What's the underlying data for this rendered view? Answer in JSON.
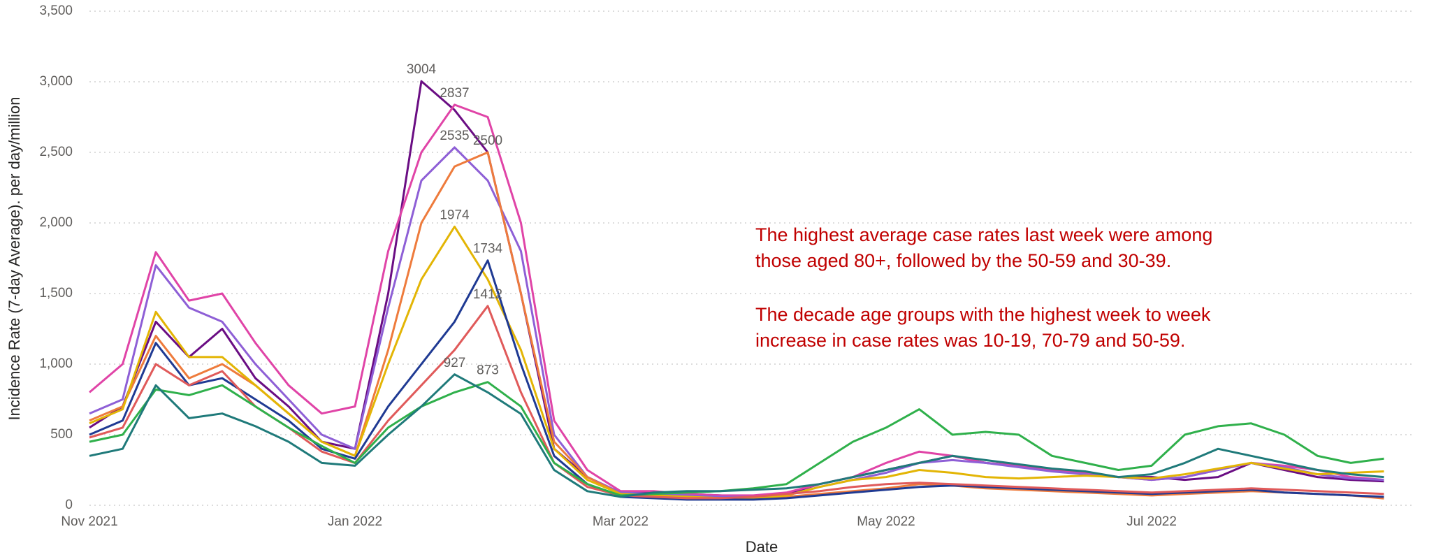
{
  "chart_data": {
    "type": "line",
    "xlabel": "Date",
    "ylabel": "Incidence Rate (7-day Average). per day/million",
    "annotations": [
      "The highest average case rates last week were among",
      "those aged 80+, followed by the 50-59 and 30-39.",
      "The decade age groups with the highest week to week",
      "increase in case rates was 10-19, 70-79 and 50-59."
    ],
    "categories": [
      "Nov 2021",
      null,
      null,
      null,
      null,
      null,
      null,
      null,
      "Jan 2022",
      null,
      null,
      null,
      null,
      null,
      null,
      null,
      "Mar 2022",
      null,
      null,
      null,
      null,
      null,
      null,
      null,
      "May 2022",
      null,
      null,
      null,
      null,
      null,
      null,
      null,
      "Jul 2022",
      null,
      null,
      null,
      null,
      null,
      null,
      null
    ],
    "ylim": [
      0,
      3500
    ],
    "yticks": [
      0,
      500,
      {
        "value": 1000,
        "label": "1,000"
      },
      {
        "value": 1500,
        "label": "1,500"
      },
      {
        "value": 2000,
        "label": "2,000"
      },
      {
        "value": 2500,
        "label": "2,500"
      },
      {
        "value": 3000,
        "label": "3,000"
      },
      {
        "value": 3500,
        "label": "3,500"
      }
    ],
    "grid": true,
    "series": [
      {
        "color": "#6a0d83",
        "values": [
          550,
          700,
          1300,
          1050,
          1250,
          900,
          700,
          450,
          400,
          1500,
          3004,
          2800,
          2500,
          1500,
          400,
          200,
          90,
          90,
          80,
          70,
          60,
          80,
          150,
          200,
          250,
          300,
          350,
          300,
          280,
          250,
          220,
          200,
          200,
          180,
          200,
          300,
          250,
          200,
          180,
          170
        ]
      },
      {
        "color": "#e044a7",
        "values": [
          800,
          1000,
          1793,
          1450,
          1500,
          1150,
          850,
          650,
          700,
          1800,
          2500,
          2837,
          2750,
          2000,
          600,
          250,
          100,
          100,
          80,
          70,
          70,
          90,
          150,
          200,
          300,
          380,
          350,
          300,
          280,
          250,
          230,
          200,
          180,
          200,
          250,
          300,
          280,
          250,
          200,
          180
        ]
      },
      {
        "color": "#8e5fd6",
        "values": [
          650,
          750,
          1700,
          1400,
          1300,
          1000,
          750,
          500,
          400,
          1400,
          2300,
          2535,
          2300,
          1800,
          500,
          200,
          90,
          80,
          70,
          60,
          60,
          70,
          130,
          180,
          230,
          300,
          320,
          300,
          270,
          240,
          220,
          200,
          180,
          200,
          250,
          300,
          270,
          220,
          190,
          180
        ]
      },
      {
        "color": "#ee7b3c",
        "values": [
          600,
          700,
          1200,
          900,
          1000,
          850,
          650,
          450,
          350,
          1100,
          2000,
          2400,
          2500,
          1500,
          450,
          200,
          80,
          70,
          60,
          50,
          50,
          60,
          80,
          100,
          120,
          150,
          140,
          120,
          110,
          100,
          90,
          80,
          70,
          80,
          90,
          100,
          90,
          80,
          70,
          48
        ]
      },
      {
        "color": "#e3b505",
        "values": [
          580,
          680,
          1370,
          1050,
          1050,
          850,
          650,
          450,
          350,
          1000,
          1600,
          1974,
          1600,
          1100,
          400,
          180,
          80,
          70,
          60,
          50,
          50,
          70,
          130,
          180,
          200,
          250,
          230,
          200,
          190,
          200,
          210,
          200,
          190,
          220,
          260,
          300,
          260,
          220,
          230,
          240
        ]
      },
      {
        "color": "#1f3a93",
        "values": [
          500,
          600,
          1150,
          850,
          900,
          750,
          600,
          400,
          330,
          700,
          1000,
          1300,
          1734,
          1000,
          350,
          150,
          60,
          50,
          40,
          40,
          40,
          50,
          70,
          90,
          110,
          130,
          140,
          130,
          120,
          110,
          100,
          90,
          80,
          90,
          100,
          110,
          90,
          80,
          70,
          60
        ]
      },
      {
        "color": "#e05a5a",
        "values": [
          480,
          550,
          1000,
          850,
          950,
          700,
          550,
          380,
          300,
          600,
          850,
          1100,
          1412,
          800,
          300,
          130,
          70,
          60,
          50,
          50,
          60,
          80,
          100,
          130,
          150,
          160,
          150,
          140,
          130,
          120,
          110,
          100,
          90,
          100,
          110,
          120,
          110,
          100,
          90,
          80
        ]
      },
      {
        "color": "#2fb04b",
        "values": [
          450,
          500,
          820,
          780,
          850,
          700,
          550,
          420,
          300,
          550,
          700,
          800,
          873,
          700,
          300,
          150,
          70,
          80,
          90,
          100,
          120,
          150,
          300,
          450,
          550,
          680,
          500,
          520,
          500,
          350,
          300,
          250,
          280,
          500,
          560,
          580,
          500,
          350,
          300,
          330
        ]
      },
      {
        "color": "#1f7a7a",
        "values": [
          350,
          400,
          850,
          617,
          650,
          560,
          450,
          300,
          280,
          500,
          700,
          927,
          800,
          647,
          250,
          100,
          60,
          90,
          100,
          100,
          110,
          120,
          150,
          200,
          250,
          300,
          350,
          320,
          290,
          260,
          240,
          200,
          220,
          300,
          400,
          350,
          300,
          250,
          220,
          200
        ]
      }
    ]
  }
}
